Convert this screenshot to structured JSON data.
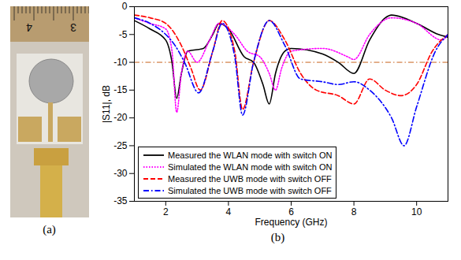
{
  "figure": {
    "panel_labels": [
      "(a)",
      "(b)"
    ]
  },
  "photo": {
    "ruler_labels": [
      "4",
      "3"
    ]
  },
  "chart_data": {
    "type": "line",
    "x_label": "Frequency (GHz)",
    "y_label": "|S11|, dB",
    "xlim": [
      1,
      11
    ],
    "xticks": [
      2,
      4,
      6,
      8,
      10
    ],
    "ylim": [
      -35,
      0
    ],
    "yticks": [
      0,
      -5,
      -10,
      -15,
      -20,
      -25,
      -30,
      -35
    ],
    "grid": false,
    "legend": "lower left",
    "reference_line": {
      "value": -10,
      "color": "#c8641e",
      "line_style": "dash-dot"
    },
    "series": [
      {
        "name": "Measured the WLAN mode with switch ON",
        "color": "#000000",
        "line_style": "solid",
        "x": [
          1,
          1.5,
          2,
          2.2,
          2.35,
          2.5,
          2.7,
          3.2,
          3.5,
          3.7,
          4,
          4.5,
          4.8,
          5.1,
          5.3,
          5.5,
          5.8,
          6,
          7,
          7.5,
          8,
          8.5,
          9,
          9.2,
          10,
          10.7,
          11
        ],
        "values": [
          -2.5,
          -4,
          -6,
          -10,
          -16.5,
          -12,
          -8,
          -7.5,
          -5,
          -3,
          -4,
          -9,
          -10,
          -14,
          -17.5,
          -12,
          -8,
          -7.5,
          -8.5,
          -10,
          -12,
          -6,
          -2,
          -1.5,
          -3,
          -5,
          -5.5
        ]
      },
      {
        "name": "Simulated the WLAN mode with switch ON",
        "color": "#ff00ff",
        "line_style": "dotted",
        "x": [
          1,
          1.5,
          2,
          2.2,
          2.35,
          2.5,
          2.7,
          3,
          3.4,
          3.7,
          4.2,
          4.6,
          5,
          5.3,
          5.5,
          5.7,
          6,
          7,
          7.8,
          8,
          8.5,
          9.2,
          10,
          10.8,
          11
        ],
        "values": [
          -2,
          -3,
          -4,
          -8,
          -19,
          -12,
          -8,
          -10,
          -6,
          -3,
          -5,
          -8,
          -9,
          -12,
          -15,
          -11,
          -8,
          -7.5,
          -9,
          -9.5,
          -5,
          -2,
          -3,
          -6,
          -5
        ]
      },
      {
        "name": "Measured the UWB mode with switch OFF",
        "color": "#ff0000",
        "line_style": "dashed",
        "x": [
          1,
          1.5,
          2,
          2.5,
          2.8,
          3.1,
          3.5,
          3.8,
          4.2,
          4.45,
          4.8,
          5.3,
          5.8,
          6.3,
          6.8,
          7.5,
          8,
          8.5,
          9,
          9.5,
          10,
          10.5,
          11
        ],
        "values": [
          -1.5,
          -2,
          -3,
          -7,
          -11,
          -15,
          -8,
          -2.5,
          -8,
          -18.5,
          -10,
          -2.5,
          -6,
          -12,
          -15,
          -16,
          -17.5,
          -13,
          -15,
          -16,
          -14,
          -8,
          -5
        ]
      },
      {
        "name": "Simulated the UWB mode with switch OFF",
        "color": "#0000ff",
        "line_style": "dash-dot",
        "x": [
          1,
          1.5,
          2,
          2.3,
          2.6,
          3.05,
          3.5,
          3.8,
          4.2,
          4.45,
          4.8,
          5.3,
          5.8,
          6.3,
          7,
          7.5,
          8,
          8.5,
          9.2,
          9.6,
          10,
          10.6,
          11
        ],
        "values": [
          -2,
          -3,
          -5,
          -7,
          -10,
          -15.5,
          -8,
          -3,
          -9,
          -19.5,
          -10,
          -2.5,
          -7,
          -13,
          -13.5,
          -14,
          -13.5,
          -15,
          -20,
          -25,
          -18,
          -8,
          -5
        ]
      }
    ]
  }
}
